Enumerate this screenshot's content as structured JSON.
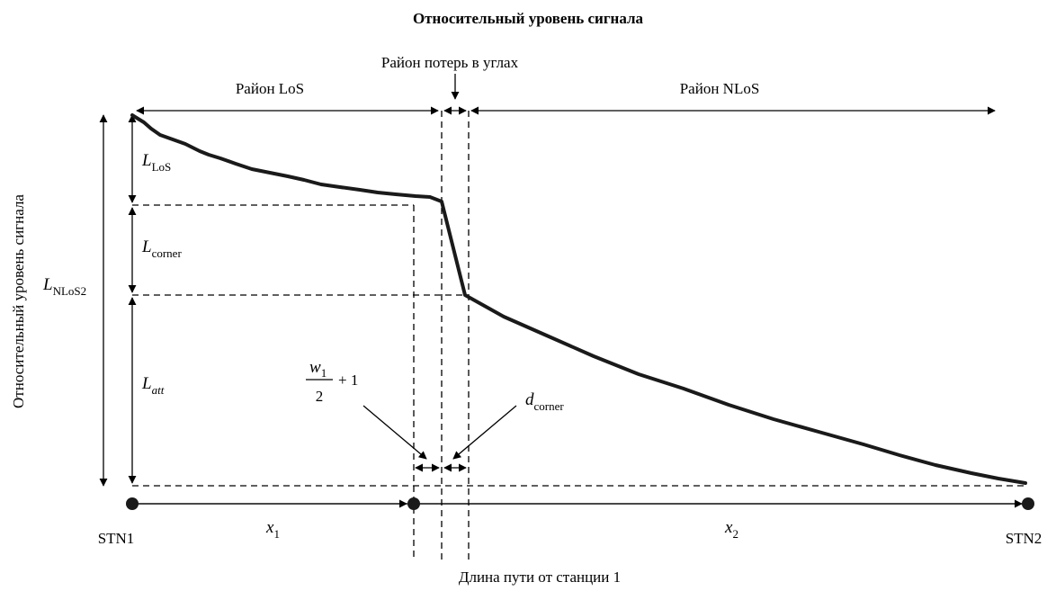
{
  "title": "Относительный уровень сигнала",
  "y_axis_label": "Относительный уровень сигнала",
  "x_axis_label": "Длина пути от станции  1",
  "regions": {
    "los": "Район  LoS",
    "corner": "Район потерь в углах",
    "nlos": "Район  NLoS"
  },
  "stations": {
    "start": "STN1",
    "end": "STN2"
  },
  "segments": {
    "x1": {
      "main": "x",
      "sub": "1"
    },
    "x2": {
      "main": "x",
      "sub": "2"
    }
  },
  "levels": {
    "l_los": {
      "main": "L",
      "sub": "LoS"
    },
    "l_corner": {
      "main": "L",
      "sub": "corner"
    },
    "l_att": {
      "main": "L",
      "sub": "att"
    },
    "l_nlos2": {
      "main": "L",
      "sub": "NLoS2"
    }
  },
  "width_label": {
    "numerator_main": "w",
    "numerator_sub": "1",
    "denominator": "2",
    "suffix": "+ 1"
  },
  "d_corner": {
    "main": "d",
    "sub": "corner"
  },
  "line_color": "#1a1a1a"
}
